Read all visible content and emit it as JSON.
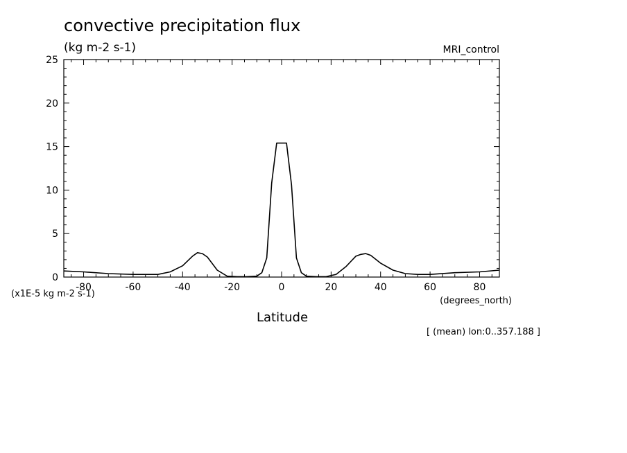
{
  "chart_data": {
    "type": "line",
    "title": "convective precipitation flux",
    "subtitle": "(kg m-2 s-1)",
    "dataset_label": "MRI_control",
    "xlabel": "Latitude",
    "xunits": "(degrees_north)",
    "yscale_label": "(x1E-5 kg m-2 s-1)",
    "footnote": "[ (mean) lon:0..357.188 ]",
    "xlim": [
      -88,
      88
    ],
    "ylim": [
      0,
      25
    ],
    "xticks": [
      -80,
      -60,
      -40,
      -20,
      0,
      20,
      40,
      60,
      80
    ],
    "yticks": [
      0,
      5,
      10,
      15,
      20,
      25
    ],
    "xtick_labels": [
      "-80",
      "-60",
      "-40",
      "-20",
      "0",
      "20",
      "40",
      "60",
      "80"
    ],
    "ytick_labels": [
      "0",
      "5",
      "10",
      "15",
      "20",
      "25"
    ],
    "grid": false,
    "series": [
      {
        "x": [
          -88,
          -80,
          -70,
          -60,
          -55,
          -50,
          -45,
          -40,
          -36,
          -34,
          -32,
          -30,
          -26,
          -22,
          -18,
          -14,
          -10,
          -8,
          -6,
          -4,
          -2,
          0,
          2,
          4,
          6,
          8,
          10,
          14,
          18,
          22,
          26,
          30,
          32,
          34,
          36,
          40,
          45,
          50,
          55,
          60,
          70,
          80,
          88
        ],
        "y": [
          0.7,
          0.6,
          0.4,
          0.3,
          0.3,
          0.3,
          0.6,
          1.3,
          2.4,
          2.8,
          2.7,
          2.3,
          0.8,
          0.1,
          0.05,
          0.05,
          0.1,
          0.5,
          2.2,
          10.8,
          15.4,
          15.4,
          15.4,
          10.6,
          2.2,
          0.5,
          0.1,
          0.05,
          0.05,
          0.3,
          1.2,
          2.4,
          2.6,
          2.7,
          2.5,
          1.6,
          0.8,
          0.4,
          0.3,
          0.3,
          0.5,
          0.6,
          0.8
        ]
      }
    ],
    "colors": {
      "line": "#000000",
      "axis": "#000000",
      "background": "#ffffff"
    }
  }
}
